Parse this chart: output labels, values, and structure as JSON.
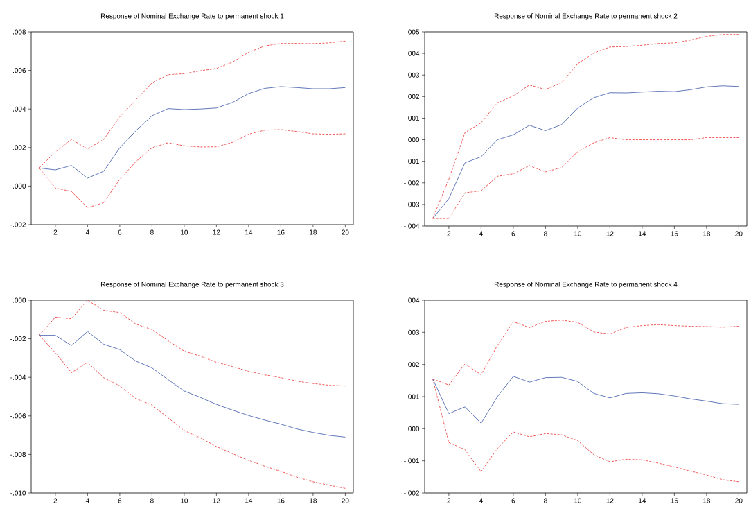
{
  "chart_data": [
    {
      "type": "line",
      "title": "Response of  Nominal Exchange Rate to permanent shock 1",
      "x": [
        1,
        2,
        3,
        4,
        5,
        6,
        7,
        8,
        9,
        10,
        11,
        12,
        13,
        14,
        15,
        16,
        17,
        18,
        19,
        20
      ],
      "xlim": [
        0.5,
        20.5
      ],
      "xticks": [
        2,
        4,
        6,
        8,
        10,
        12,
        14,
        16,
        18,
        20
      ],
      "ylim": [
        -0.002,
        0.008
      ],
      "yticks": [
        {
          "value": -0.002,
          "label": "-.002"
        },
        {
          "value": 0.0,
          "label": ".000"
        },
        {
          "value": 0.002,
          "label": ".002"
        },
        {
          "value": 0.004,
          "label": ".004"
        },
        {
          "value": 0.006,
          "label": ".006"
        },
        {
          "value": 0.008,
          "label": ".008"
        }
      ],
      "line_style": "solid",
      "series": [
        {
          "color": "#3a56a8",
          "values": [
            0.00094,
            0.00084,
            0.00107,
            0.00041,
            0.00077,
            0.00199,
            0.00287,
            0.00365,
            0.00402,
            0.00397,
            0.004,
            0.00405,
            0.00434,
            0.0048,
            0.00507,
            0.00516,
            0.00511,
            0.00505,
            0.00505,
            0.00511
          ]
        },
        {
          "color": "#ee2c2c",
          "line_style": "dashed",
          "values": [
            0.00094,
            0.00177,
            0.00242,
            0.00193,
            0.00242,
            0.00359,
            0.00448,
            0.00535,
            0.00578,
            0.00583,
            0.00598,
            0.0061,
            0.00643,
            0.00694,
            0.00727,
            0.0074,
            0.0074,
            0.00739,
            0.00743,
            0.00752
          ]
        },
        {
          "color": "#ee2c2c",
          "line_style": "dashed",
          "values": [
            0.00094,
            -0.0001,
            -0.00028,
            -0.00112,
            -0.00086,
            0.00035,
            0.00127,
            0.00199,
            0.00225,
            0.00209,
            0.00203,
            0.00204,
            0.00227,
            0.00269,
            0.0029,
            0.00293,
            0.00283,
            0.00271,
            0.00269,
            0.00271
          ]
        }
      ]
    },
    {
      "type": "line",
      "title": "Response of  Nominal Exchange Rate to permanent shock 2",
      "x": [
        1,
        2,
        3,
        4,
        5,
        6,
        7,
        8,
        9,
        10,
        11,
        12,
        13,
        14,
        15,
        16,
        17,
        18,
        19,
        20
      ],
      "xlim": [
        0.5,
        20.5
      ],
      "xticks": [
        2,
        4,
        6,
        8,
        10,
        12,
        14,
        16,
        18,
        20
      ],
      "ylim": [
        -0.004,
        0.005
      ],
      "yticks": [
        {
          "value": -0.004,
          "label": "-.004"
        },
        {
          "value": -0.003,
          "label": "-.003"
        },
        {
          "value": -0.002,
          "label": "-.002"
        },
        {
          "value": -0.001,
          "label": "-.001"
        },
        {
          "value": 0.0,
          "label": ".000"
        },
        {
          "value": 0.001,
          "label": ".001"
        },
        {
          "value": 0.002,
          "label": ".002"
        },
        {
          "value": 0.003,
          "label": ".003"
        },
        {
          "value": 0.004,
          "label": ".004"
        },
        {
          "value": 0.005,
          "label": ".005"
        }
      ],
      "line_style": "solid",
      "series": [
        {
          "color": "#3a56a8",
          "values": [
            -0.00365,
            -0.00273,
            -0.00107,
            -0.00079,
            0.0,
            0.00023,
            0.00067,
            0.00042,
            0.0007,
            0.00147,
            0.00195,
            0.00218,
            0.00217,
            0.00221,
            0.00225,
            0.00223,
            0.00232,
            0.00245,
            0.0025,
            0.00247
          ]
        },
        {
          "color": "#ee2c2c",
          "line_style": "dashed",
          "values": [
            -0.00365,
            -0.00183,
            0.00033,
            0.00078,
            0.00171,
            0.00203,
            0.00254,
            0.00233,
            0.00265,
            0.00352,
            0.00402,
            0.0043,
            0.00432,
            0.00438,
            0.00446,
            0.00449,
            0.00462,
            0.00479,
            0.00488,
            0.00488
          ]
        },
        {
          "color": "#ee2c2c",
          "line_style": "dashed",
          "values": [
            -0.00365,
            -0.00365,
            -0.00246,
            -0.00237,
            -0.0017,
            -0.00158,
            -0.0012,
            -0.00149,
            -0.00129,
            -0.00055,
            -0.00014,
            0.0001,
            0.0,
            0.0,
            0.0,
            0.0,
            0.0,
            0.0001,
            0.0001,
            0.0001
          ]
        }
      ]
    },
    {
      "type": "line",
      "title": "Response of  Nominal Exchange Rate to permanent shock 3",
      "x": [
        1,
        2,
        3,
        4,
        5,
        6,
        7,
        8,
        9,
        10,
        11,
        12,
        13,
        14,
        15,
        16,
        17,
        18,
        19,
        20
      ],
      "xlim": [
        0.5,
        20.5
      ],
      "xticks": [
        2,
        4,
        6,
        8,
        10,
        12,
        14,
        16,
        18,
        20
      ],
      "ylim": [
        -0.01,
        0.0
      ],
      "yticks": [
        {
          "value": -0.01,
          "label": "-.010"
        },
        {
          "value": -0.008,
          "label": "-.008"
        },
        {
          "value": -0.006,
          "label": "-.006"
        },
        {
          "value": -0.004,
          "label": "-.004"
        },
        {
          "value": -0.002,
          "label": "-.002"
        },
        {
          "value": 0.0,
          "label": ".000"
        }
      ],
      "line_style": "solid",
      "series": [
        {
          "color": "#3a56a8",
          "values": [
            -0.00182,
            -0.00182,
            -0.00235,
            -0.00162,
            -0.00228,
            -0.00256,
            -0.00316,
            -0.00351,
            -0.00412,
            -0.00471,
            -0.00504,
            -0.0054,
            -0.0057,
            -0.00598,
            -0.00622,
            -0.00643,
            -0.00668,
            -0.00686,
            -0.00701,
            -0.0071
          ]
        },
        {
          "color": "#ee2c2c",
          "line_style": "dashed",
          "values": [
            -0.00182,
            -0.00088,
            -0.00096,
            0.0,
            -0.00052,
            -0.00064,
            -0.00124,
            -0.00152,
            -0.0021,
            -0.00264,
            -0.0029,
            -0.00322,
            -0.00344,
            -0.00369,
            -0.00387,
            -0.00402,
            -0.0042,
            -0.00432,
            -0.00441,
            -0.00445
          ]
        },
        {
          "color": "#ee2c2c",
          "line_style": "dashed",
          "values": [
            -0.00182,
            -0.00272,
            -0.00376,
            -0.00322,
            -0.00402,
            -0.00444,
            -0.0051,
            -0.00544,
            -0.0061,
            -0.00676,
            -0.00714,
            -0.00759,
            -0.00796,
            -0.00831,
            -0.00861,
            -0.00888,
            -0.00918,
            -0.00942,
            -0.0096,
            -0.00976
          ]
        }
      ]
    },
    {
      "type": "line",
      "title": "Response of  Nominal Exchange Rate to permanent shock 4",
      "x": [
        1,
        2,
        3,
        4,
        5,
        6,
        7,
        8,
        9,
        10,
        11,
        12,
        13,
        14,
        15,
        16,
        17,
        18,
        19,
        20
      ],
      "xlim": [
        0.5,
        20.5
      ],
      "xticks": [
        2,
        4,
        6,
        8,
        10,
        12,
        14,
        16,
        18,
        20
      ],
      "ylim": [
        -0.002,
        0.004
      ],
      "yticks": [
        {
          "value": -0.002,
          "label": "-.002"
        },
        {
          "value": -0.001,
          "label": "-.001"
        },
        {
          "value": 0.0,
          "label": ".000"
        },
        {
          "value": 0.001,
          "label": ".001"
        },
        {
          "value": 0.002,
          "label": ".002"
        },
        {
          "value": 0.003,
          "label": ".003"
        },
        {
          "value": 0.004,
          "label": ".004"
        }
      ],
      "line_style": "solid",
      "series": [
        {
          "color": "#3a56a8",
          "values": [
            0.00155,
            0.00047,
            0.00068,
            0.00017,
            0.00099,
            0.00163,
            0.00145,
            0.00159,
            0.0016,
            0.00147,
            0.0011,
            0.00096,
            0.0011,
            0.00112,
            0.00109,
            0.00102,
            0.00093,
            0.00086,
            0.00078,
            0.00076
          ]
        },
        {
          "color": "#ee2c2c",
          "line_style": "dashed",
          "values": [
            0.00155,
            0.00136,
            0.00202,
            0.00168,
            0.00258,
            0.00333,
            0.00315,
            0.00334,
            0.00338,
            0.00331,
            0.00301,
            0.00295,
            0.00315,
            0.00321,
            0.00324,
            0.00321,
            0.00319,
            0.00318,
            0.00316,
            0.00319
          ]
        },
        {
          "color": "#ee2c2c",
          "line_style": "dashed",
          "values": [
            0.00155,
            -0.00043,
            -0.00065,
            -0.00134,
            -0.00062,
            -0.0001,
            -0.00025,
            -0.00015,
            -0.00019,
            -0.00037,
            -0.00081,
            -0.00103,
            -0.00095,
            -0.00097,
            -0.00107,
            -0.00119,
            -0.00132,
            -0.00144,
            -0.00159,
            -0.00165
          ]
        }
      ]
    }
  ]
}
